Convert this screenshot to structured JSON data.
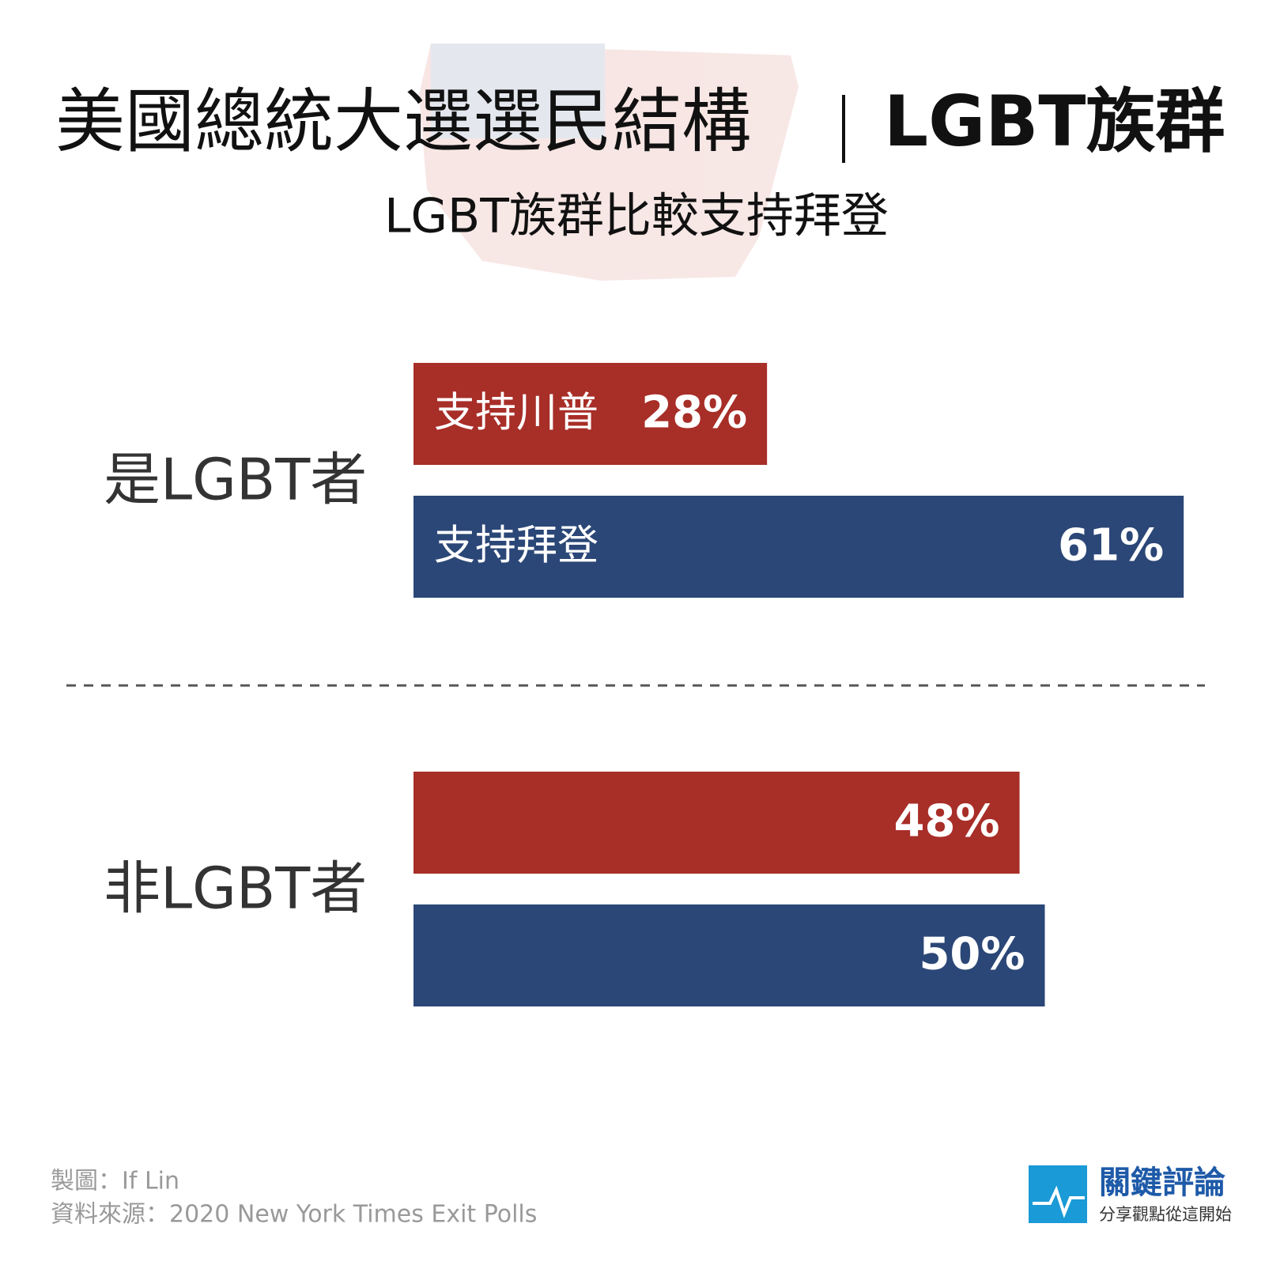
{
  "chart_data": {
    "type": "bar",
    "orientation": "horizontal",
    "title": "美國總統大選選民結構",
    "title_topic": "LGBT族群",
    "subtitle": "LGBT族群比較支持拜登",
    "categories": [
      "是LGBT者",
      "非LGBT者"
    ],
    "series": [
      {
        "name": "支持川普",
        "color": "#a82e28",
        "values": [
          28,
          48
        ],
        "value_labels": [
          "28%",
          "48%"
        ]
      },
      {
        "name": "支持拜登",
        "color": "#2b4777",
        "values": [
          61,
          50
        ],
        "value_labels": [
          "61%",
          "50%"
        ]
      }
    ],
    "credit": "製圖：If Lin",
    "source": "資料來源：2020 New York Times Exit Polls",
    "brand": "關鍵評論",
    "brand_slogan": "分享觀點從這開始"
  }
}
